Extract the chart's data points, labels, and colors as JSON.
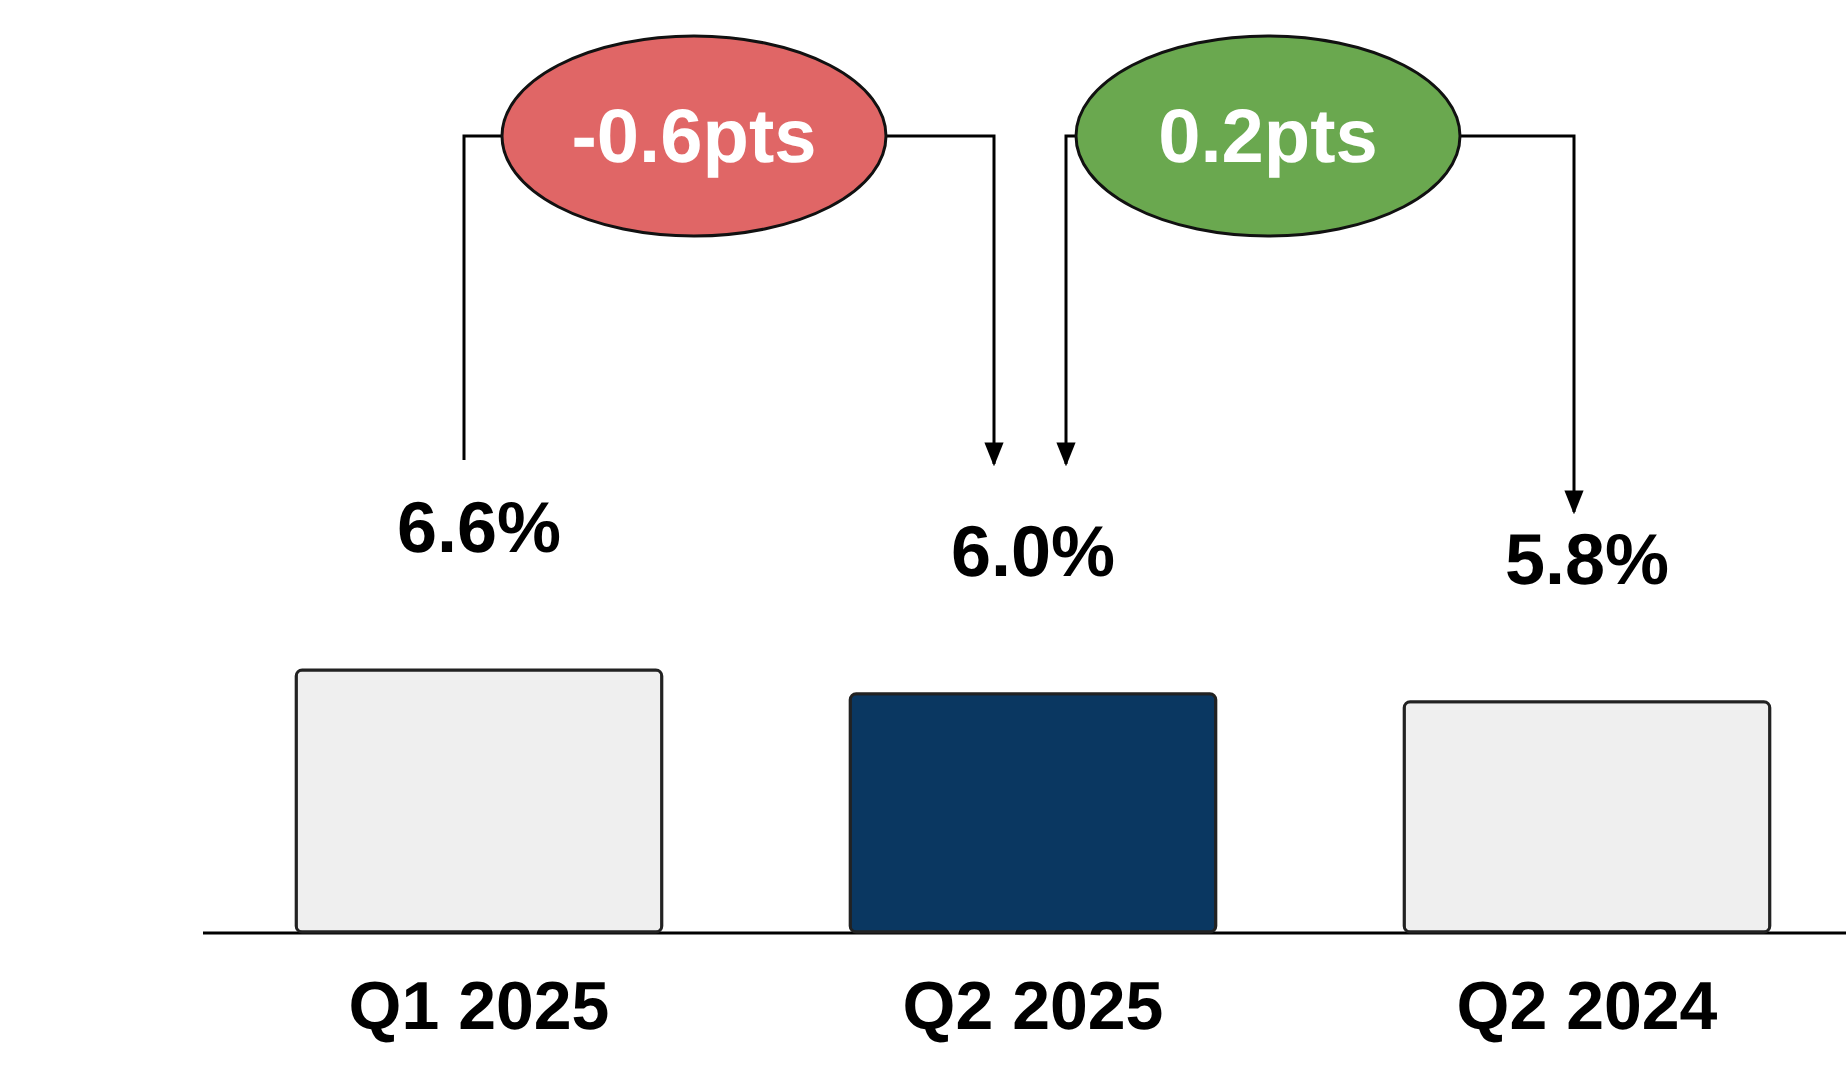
{
  "chart_data": {
    "type": "bar",
    "categories": [
      "Q1 2025",
      "Q2 2025",
      "Q2 2024"
    ],
    "values": [
      6.6,
      6.0,
      5.8
    ],
    "colors": [
      "#efefef",
      "#0a3761",
      "#efefef"
    ],
    "value_labels": [
      "6.6%",
      "6.0%",
      "5.8%"
    ],
    "annotations": [
      "-0.6pts",
      "0.2pts"
    ]
  }
}
